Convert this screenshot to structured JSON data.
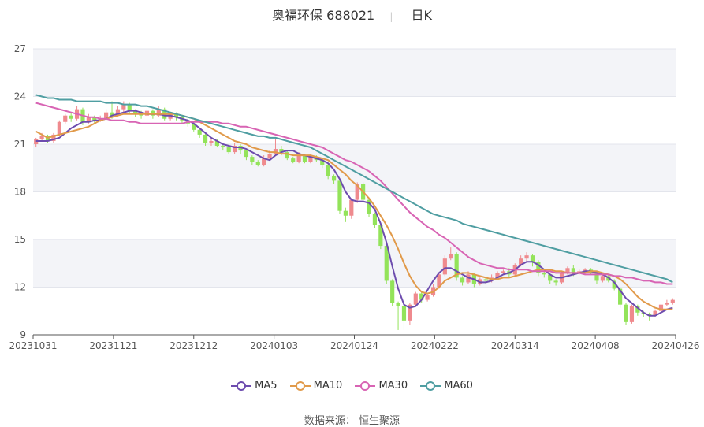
{
  "header": {
    "stock_name": "奥福环保",
    "stock_code": "688021",
    "period": "日K"
  },
  "colors": {
    "up": "#ef8a8e",
    "down": "#93e35a",
    "MA5": "#6d4cae",
    "MA10": "#e19a4a",
    "MA30": "#d864b4",
    "MA60": "#4f9ea2"
  },
  "chart_data": {
    "type": "candlestick",
    "title": "奥福环保 688021 日K",
    "ylim": [
      9,
      27
    ],
    "y_ticks": [
      "9",
      "12",
      "15",
      "18",
      "21",
      "24",
      "27"
    ],
    "x_ticks": [
      "20231031",
      "20231121",
      "20231212",
      "20240103",
      "20240124",
      "20240222",
      "20240314",
      "20240408",
      "20240426"
    ],
    "legend": {
      "position": "bottom",
      "items": [
        "MA5",
        "MA10",
        "MA30",
        "MA60"
      ]
    },
    "grid": true,
    "candles": [
      [
        21.0,
        21.3,
        20.8,
        21.4
      ],
      [
        21.3,
        21.5,
        21.2,
        21.7
      ],
      [
        21.5,
        21.2,
        21.1,
        21.6
      ],
      [
        21.2,
        21.6,
        21.1,
        21.7
      ],
      [
        21.6,
        22.4,
        21.5,
        22.5
      ],
      [
        22.4,
        22.8,
        22.3,
        22.9
      ],
      [
        22.8,
        22.6,
        22.4,
        23.0
      ],
      [
        22.6,
        23.2,
        22.5,
        23.4
      ],
      [
        23.2,
        22.4,
        22.2,
        23.3
      ],
      [
        22.4,
        22.7,
        22.3,
        22.9
      ],
      [
        22.7,
        22.5,
        22.3,
        22.8
      ],
      [
        22.5,
        22.6,
        22.4,
        22.8
      ],
      [
        22.6,
        23.0,
        22.5,
        23.2
      ],
      [
        23.0,
        22.8,
        22.6,
        23.7
      ],
      [
        22.8,
        23.2,
        22.7,
        23.4
      ],
      [
        23.2,
        23.5,
        23.0,
        23.7
      ],
      [
        23.5,
        23.1,
        22.9,
        23.6
      ],
      [
        23.1,
        22.9,
        22.7,
        23.2
      ],
      [
        22.9,
        22.8,
        22.6,
        23.1
      ],
      [
        22.8,
        23.1,
        22.7,
        23.3
      ],
      [
        23.1,
        22.8,
        22.6,
        23.2
      ],
      [
        22.8,
        23.2,
        22.7,
        23.4
      ],
      [
        23.2,
        22.6,
        22.5,
        23.3
      ],
      [
        22.6,
        22.9,
        22.5,
        23.0
      ],
      [
        22.9,
        22.7,
        22.5,
        23.0
      ],
      [
        22.7,
        22.5,
        22.3,
        22.8
      ],
      [
        22.5,
        22.3,
        22.1,
        22.6
      ],
      [
        22.3,
        21.9,
        21.8,
        22.4
      ],
      [
        21.9,
        21.6,
        21.4,
        22.0
      ],
      [
        21.6,
        21.1,
        20.9,
        21.7
      ],
      [
        21.1,
        21.2,
        20.9,
        21.3
      ],
      [
        21.2,
        20.9,
        20.8,
        21.3
      ],
      [
        20.9,
        20.8,
        20.6,
        21.0
      ],
      [
        20.8,
        20.5,
        20.4,
        20.9
      ],
      [
        20.5,
        20.9,
        20.4,
        21.1
      ],
      [
        20.9,
        20.6,
        20.4,
        21.0
      ],
      [
        20.6,
        20.2,
        20.0,
        20.7
      ],
      [
        20.2,
        19.9,
        19.7,
        20.3
      ],
      [
        19.9,
        19.7,
        19.6,
        20.0
      ],
      [
        19.7,
        20.1,
        19.6,
        20.3
      ],
      [
        20.1,
        20.4,
        20.0,
        20.6
      ],
      [
        20.4,
        20.7,
        20.3,
        21.3
      ],
      [
        20.7,
        20.5,
        20.3,
        20.9
      ],
      [
        20.5,
        20.1,
        20.0,
        20.6
      ],
      [
        20.1,
        19.9,
        19.8,
        20.2
      ],
      [
        19.9,
        20.3,
        19.8,
        20.5
      ],
      [
        20.3,
        19.9,
        19.8,
        20.4
      ],
      [
        19.9,
        20.2,
        19.8,
        20.4
      ],
      [
        20.2,
        20.0,
        19.9,
        20.3
      ],
      [
        20.0,
        19.7,
        19.5,
        20.1
      ],
      [
        19.7,
        19.0,
        18.8,
        19.8
      ],
      [
        19.0,
        18.7,
        18.5,
        19.1
      ],
      [
        18.7,
        16.8,
        16.6,
        18.8
      ],
      [
        16.8,
        16.5,
        16.1,
        17.0
      ],
      [
        16.5,
        17.5,
        16.3,
        17.6
      ],
      [
        17.5,
        18.5,
        17.3,
        18.6
      ],
      [
        18.5,
        17.5,
        17.3,
        18.6
      ],
      [
        17.5,
        16.6,
        16.4,
        17.6
      ],
      [
        16.6,
        15.9,
        15.7,
        16.7
      ],
      [
        15.9,
        14.6,
        14.4,
        16.0
      ],
      [
        14.6,
        12.4,
        12.2,
        14.7
      ],
      [
        12.4,
        11.0,
        10.8,
        12.5
      ],
      [
        11.0,
        10.8,
        9.3,
        11.1
      ],
      [
        10.8,
        9.9,
        9.3,
        11.4
      ],
      [
        9.9,
        10.9,
        9.6,
        11.0
      ],
      [
        10.9,
        11.6,
        10.8,
        11.7
      ],
      [
        11.6,
        11.2,
        11.0,
        11.7
      ],
      [
        11.2,
        11.5,
        11.1,
        11.6
      ],
      [
        11.5,
        12.0,
        11.4,
        12.2
      ],
      [
        12.0,
        12.8,
        11.9,
        12.9
      ],
      [
        12.8,
        13.8,
        12.7,
        14.0
      ],
      [
        13.8,
        14.1,
        13.7,
        14.5
      ],
      [
        14.1,
        12.6,
        12.4,
        14.2
      ],
      [
        12.6,
        12.3,
        12.1,
        12.7
      ],
      [
        12.3,
        12.8,
        12.2,
        13.0
      ],
      [
        12.8,
        12.2,
        12.0,
        12.9
      ],
      [
        12.2,
        12.5,
        12.1,
        12.6
      ],
      [
        12.5,
        12.4,
        12.2,
        12.6
      ],
      [
        12.4,
        12.6,
        12.3,
        12.8
      ],
      [
        12.6,
        12.9,
        12.5,
        13.0
      ],
      [
        12.9,
        13.0,
        12.8,
        13.1
      ],
      [
        13.0,
        12.8,
        12.6,
        13.2
      ],
      [
        12.8,
        13.4,
        12.7,
        13.5
      ],
      [
        13.4,
        13.8,
        13.3,
        14.0
      ],
      [
        13.8,
        14.0,
        13.6,
        14.2
      ],
      [
        14.0,
        13.6,
        13.3,
        14.1
      ],
      [
        13.6,
        12.9,
        12.7,
        13.7
      ],
      [
        12.9,
        12.8,
        12.6,
        13.0
      ],
      [
        12.8,
        12.4,
        12.2,
        12.9
      ],
      [
        12.4,
        12.3,
        12.1,
        12.5
      ],
      [
        12.3,
        12.9,
        12.2,
        13.0
      ],
      [
        12.9,
        13.2,
        12.8,
        13.3
      ],
      [
        13.2,
        12.9,
        12.7,
        13.4
      ],
      [
        12.9,
        13.0,
        12.8,
        13.1
      ],
      [
        13.0,
        13.1,
        12.9,
        13.2
      ],
      [
        13.1,
        12.9,
        12.8,
        13.2
      ],
      [
        12.9,
        12.4,
        12.2,
        13.0
      ],
      [
        12.4,
        12.7,
        12.3,
        12.8
      ],
      [
        12.7,
        12.4,
        12.3,
        12.8
      ],
      [
        12.4,
        11.9,
        11.8,
        12.5
      ],
      [
        11.9,
        10.9,
        10.7,
        12.0
      ],
      [
        10.9,
        9.8,
        9.6,
        11.0
      ],
      [
        9.8,
        10.8,
        9.7,
        10.9
      ],
      [
        10.8,
        10.4,
        10.2,
        10.9
      ],
      [
        10.4,
        10.3,
        10.1,
        10.5
      ],
      [
        10.3,
        10.2,
        9.9,
        10.4
      ],
      [
        10.2,
        10.5,
        10.1,
        10.6
      ],
      [
        10.5,
        10.9,
        10.4,
        11.0
      ],
      [
        10.9,
        11.0,
        10.8,
        11.2
      ],
      [
        11.0,
        11.2,
        10.9,
        11.3
      ]
    ],
    "ma": {
      "MA5": {
        "start": 0,
        "values": [
          21.2,
          21.2,
          21.2,
          21.3,
          21.4,
          21.7,
          22.0,
          22.2,
          22.4,
          22.4,
          22.5,
          22.5,
          22.6,
          22.8,
          22.9,
          23.0,
          23.1,
          23.1,
          23.0,
          22.9,
          22.9,
          22.9,
          22.8,
          22.8,
          22.7,
          22.6,
          22.5,
          22.3,
          22.0,
          21.7,
          21.4,
          21.2,
          21.0,
          20.9,
          20.8,
          20.8,
          20.7,
          20.5,
          20.3,
          20.1,
          20.0,
          20.3,
          20.5,
          20.6,
          20.6,
          20.4,
          20.3,
          20.2,
          20.1,
          20.0,
          19.8,
          19.4,
          18.8,
          18.0,
          17.5,
          17.4,
          17.4,
          17.3,
          16.9,
          16.0,
          14.8,
          13.3,
          11.9,
          10.9,
          10.7,
          10.8,
          11.2,
          11.8,
          12.4,
          12.9,
          13.2,
          13.2,
          13.0,
          12.8,
          12.6,
          12.5,
          12.3,
          12.3,
          12.4,
          12.6,
          12.8,
          12.9,
          13.1,
          13.4,
          13.6,
          13.6,
          13.4,
          13.1,
          12.8,
          12.6,
          12.6,
          12.7,
          12.8,
          12.9,
          13.0,
          13.0,
          12.9,
          12.8,
          12.6,
          12.3,
          11.8,
          11.3,
          11.0,
          10.7,
          10.4,
          10.2,
          10.2,
          10.4,
          10.6,
          10.7
        ]
      },
      "MA10": {
        "start": 0,
        "values": [
          21.8,
          21.6,
          21.4,
          21.5,
          21.6,
          21.7,
          21.8,
          21.9,
          22.0,
          22.1,
          22.3,
          22.5,
          22.6,
          22.7,
          22.8,
          22.9,
          22.9,
          22.9,
          22.9,
          22.9,
          22.9,
          22.9,
          22.9,
          22.9,
          22.9,
          22.8,
          22.7,
          22.6,
          22.4,
          22.2,
          22.0,
          21.8,
          21.6,
          21.4,
          21.2,
          21.1,
          21.0,
          20.8,
          20.7,
          20.6,
          20.5,
          20.5,
          20.4,
          20.4,
          20.3,
          20.3,
          20.3,
          20.3,
          20.2,
          20.1,
          20.0,
          19.7,
          19.4,
          19.1,
          18.7,
          18.4,
          18.0,
          17.6,
          17.1,
          16.5,
          15.9,
          15.2,
          14.4,
          13.5,
          12.7,
          12.1,
          11.7,
          11.6,
          11.7,
          12.0,
          12.4,
          12.6,
          12.8,
          12.9,
          12.9,
          12.8,
          12.7,
          12.6,
          12.5,
          12.5,
          12.6,
          12.6,
          12.7,
          12.8,
          12.9,
          13.0,
          13.1,
          13.1,
          13.1,
          13.0,
          13.0,
          12.9,
          12.9,
          12.9,
          12.9,
          13.0,
          13.0,
          12.9,
          12.8,
          12.7,
          12.5,
          12.2,
          11.8,
          11.4,
          11.1,
          10.9,
          10.7,
          10.6,
          10.6,
          10.6
        ]
      },
      "MA30": {
        "start": 0,
        "values": [
          23.6,
          23.5,
          23.4,
          23.3,
          23.2,
          23.1,
          23.0,
          22.9,
          22.8,
          22.7,
          22.7,
          22.6,
          22.6,
          22.5,
          22.5,
          22.5,
          22.4,
          22.4,
          22.3,
          22.3,
          22.3,
          22.3,
          22.3,
          22.3,
          22.3,
          22.3,
          22.4,
          22.4,
          22.4,
          22.4,
          22.4,
          22.4,
          22.3,
          22.3,
          22.2,
          22.1,
          22.1,
          22.0,
          21.9,
          21.8,
          21.7,
          21.6,
          21.5,
          21.4,
          21.3,
          21.2,
          21.1,
          21.0,
          20.9,
          20.8,
          20.6,
          20.4,
          20.2,
          20.0,
          19.9,
          19.7,
          19.5,
          19.3,
          19.0,
          18.7,
          18.3,
          17.9,
          17.5,
          17.1,
          16.7,
          16.4,
          16.1,
          15.8,
          15.6,
          15.3,
          15.1,
          14.8,
          14.5,
          14.2,
          13.9,
          13.7,
          13.5,
          13.4,
          13.3,
          13.2,
          13.2,
          13.1,
          13.1,
          13.1,
          13.1,
          13.0,
          13.0,
          13.0,
          13.0,
          12.9,
          12.9,
          12.9,
          12.9,
          12.9,
          12.8,
          12.8,
          12.8,
          12.8,
          12.8,
          12.7,
          12.7,
          12.6,
          12.6,
          12.5,
          12.4,
          12.4,
          12.3,
          12.3,
          12.2,
          12.2
        ]
      },
      "MA60": {
        "start": 0,
        "values": [
          24.1,
          24.0,
          23.9,
          23.9,
          23.8,
          23.8,
          23.8,
          23.7,
          23.7,
          23.7,
          23.7,
          23.7,
          23.6,
          23.6,
          23.6,
          23.5,
          23.5,
          23.5,
          23.4,
          23.4,
          23.3,
          23.2,
          23.1,
          23.0,
          22.9,
          22.8,
          22.7,
          22.6,
          22.5,
          22.4,
          22.3,
          22.2,
          22.1,
          22.0,
          21.9,
          21.8,
          21.7,
          21.6,
          21.5,
          21.5,
          21.4,
          21.4,
          21.3,
          21.2,
          21.1,
          21.0,
          20.9,
          20.8,
          20.6,
          20.4,
          20.2,
          20.0,
          19.8,
          19.6,
          19.4,
          19.2,
          19.0,
          18.8,
          18.6,
          18.4,
          18.2,
          18.0,
          17.8,
          17.6,
          17.4,
          17.2,
          17.0,
          16.8,
          16.6,
          16.5,
          16.4,
          16.3,
          16.2,
          16.0,
          15.9,
          15.8,
          15.7,
          15.6,
          15.5,
          15.4,
          15.3,
          15.2,
          15.1,
          15.0,
          14.9,
          14.8,
          14.7,
          14.6,
          14.5,
          14.4,
          14.3,
          14.2,
          14.1,
          14.0,
          13.9,
          13.8,
          13.7,
          13.6,
          13.5,
          13.4,
          13.3,
          13.2,
          13.1,
          13.0,
          12.9,
          12.8,
          12.7,
          12.6,
          12.5,
          12.3
        ]
      }
    }
  },
  "legend": {
    "items": [
      "MA5",
      "MA10",
      "MA30",
      "MA60"
    ]
  },
  "footer": {
    "source": "数据来源： 恒生聚源"
  }
}
